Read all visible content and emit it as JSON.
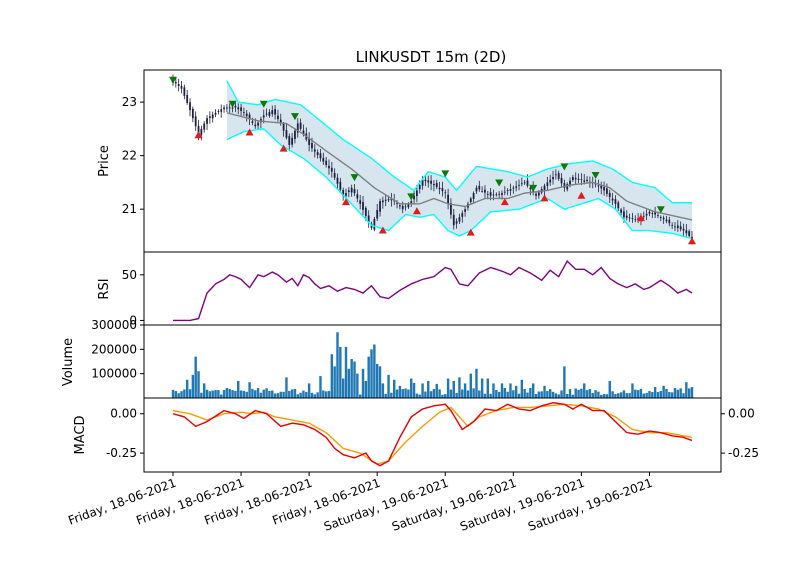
{
  "chart_data": {
    "title": "LINKUSDT 15m (2D)",
    "type": "candlestick",
    "colors": {
      "candle": "#1f1f3f",
      "band_line": "#00ffff",
      "band_fill": "#c9dcea",
      "mid_line": "#808080",
      "sell_marker": "#0a7a0a",
      "buy_marker": "#e21b1b",
      "rsi": "#800080",
      "volume": "#1f77b4",
      "macd": "#e60000",
      "signal": "#ff9900"
    },
    "x_tick_labels": [
      "Friday, 18-06-2021",
      "Friday, 18-06-2021",
      "Friday, 18-06-2021",
      "Friday, 18-06-2021",
      "Saturday, 19-06-2021",
      "Saturday, 19-06-2021",
      "Saturday, 19-06-2021",
      "Saturday, 19-06-2021"
    ],
    "x_tick_index": [
      0,
      24,
      48,
      72,
      96,
      120,
      144,
      168
    ],
    "candles": 184,
    "price_panel": {
      "ylabel": "Price",
      "yticks": [
        21,
        22,
        23
      ],
      "ylim": [
        20.2,
        23.6
      ],
      "close_keypoints": [
        [
          0,
          23.4
        ],
        [
          3,
          23.25
        ],
        [
          6,
          22.85
        ],
        [
          9,
          22.4
        ],
        [
          12,
          22.7
        ],
        [
          18,
          22.9
        ],
        [
          22,
          22.9
        ],
        [
          25,
          22.8
        ],
        [
          29,
          22.55
        ],
        [
          32,
          22.75
        ],
        [
          35,
          22.85
        ],
        [
          38,
          22.6
        ],
        [
          41,
          22.2
        ],
        [
          44,
          22.6
        ],
        [
          48,
          22.2
        ],
        [
          52,
          21.95
        ],
        [
          56,
          21.7
        ],
        [
          60,
          21.25
        ],
        [
          63,
          21.4
        ],
        [
          66,
          21.1
        ],
        [
          70,
          20.65
        ],
        [
          73,
          21.15
        ],
        [
          77,
          21.2
        ],
        [
          81,
          21.0
        ],
        [
          84,
          21.15
        ],
        [
          88,
          21.55
        ],
        [
          92,
          21.45
        ],
        [
          96,
          21.3
        ],
        [
          99,
          20.7
        ],
        [
          103,
          21.0
        ],
        [
          107,
          21.4
        ],
        [
          112,
          21.25
        ],
        [
          116,
          21.3
        ],
        [
          120,
          21.4
        ],
        [
          124,
          21.5
        ],
        [
          128,
          21.25
        ],
        [
          132,
          21.5
        ],
        [
          135,
          21.65
        ],
        [
          138,
          21.4
        ],
        [
          141,
          21.6
        ],
        [
          144,
          21.55
        ],
        [
          148,
          21.5
        ],
        [
          152,
          21.35
        ],
        [
          156,
          21.1
        ],
        [
          159,
          20.85
        ],
        [
          164,
          20.8
        ],
        [
          168,
          20.95
        ],
        [
          172,
          20.85
        ],
        [
          176,
          20.7
        ],
        [
          180,
          20.6
        ],
        [
          183,
          20.45
        ]
      ],
      "mid_keypoints": [
        [
          19,
          22.8
        ],
        [
          30,
          22.65
        ],
        [
          40,
          22.6
        ],
        [
          46,
          22.4
        ],
        [
          55,
          22.05
        ],
        [
          63,
          21.75
        ],
        [
          71,
          21.4
        ],
        [
          80,
          21.1
        ],
        [
          87,
          21.1
        ],
        [
          92,
          21.2
        ],
        [
          97,
          21.1
        ],
        [
          103,
          21.05
        ],
        [
          110,
          21.2
        ],
        [
          118,
          21.2
        ],
        [
          124,
          21.3
        ],
        [
          132,
          21.35
        ],
        [
          140,
          21.45
        ],
        [
          148,
          21.5
        ],
        [
          154,
          21.4
        ],
        [
          160,
          21.15
        ],
        [
          170,
          20.95
        ],
        [
          183,
          20.8
        ]
      ],
      "upper_keypoints": [
        [
          19,
          23.4
        ],
        [
          23,
          23.0
        ],
        [
          30,
          22.95
        ],
        [
          36,
          23.05
        ],
        [
          45,
          22.95
        ],
        [
          52,
          22.65
        ],
        [
          60,
          22.3
        ],
        [
          70,
          21.95
        ],
        [
          78,
          21.6
        ],
        [
          85,
          21.35
        ],
        [
          90,
          21.7
        ],
        [
          96,
          21.6
        ],
        [
          100,
          21.35
        ],
        [
          107,
          21.8
        ],
        [
          118,
          21.7
        ],
        [
          125,
          21.6
        ],
        [
          132,
          21.75
        ],
        [
          140,
          21.85
        ],
        [
          148,
          21.9
        ],
        [
          155,
          21.75
        ],
        [
          162,
          21.5
        ],
        [
          170,
          21.4
        ],
        [
          176,
          21.12
        ],
        [
          183,
          21.12
        ]
      ],
      "lower_keypoints": [
        [
          19,
          22.3
        ],
        [
          25,
          22.45
        ],
        [
          32,
          22.5
        ],
        [
          38,
          22.2
        ],
        [
          46,
          21.95
        ],
        [
          54,
          21.6
        ],
        [
          62,
          21.15
        ],
        [
          70,
          20.7
        ],
        [
          76,
          20.6
        ],
        [
          82,
          20.9
        ],
        [
          87,
          20.85
        ],
        [
          92,
          20.9
        ],
        [
          97,
          20.6
        ],
        [
          101,
          20.5
        ],
        [
          105,
          20.6
        ],
        [
          112,
          20.95
        ],
        [
          122,
          21.0
        ],
        [
          132,
          21.2
        ],
        [
          138,
          21.0
        ],
        [
          144,
          21.1
        ],
        [
          150,
          21.2
        ],
        [
          156,
          21.0
        ],
        [
          162,
          20.6
        ],
        [
          168,
          20.6
        ],
        [
          176,
          20.55
        ],
        [
          183,
          20.45
        ]
      ],
      "sell_signals": [
        [
          0,
          23.4
        ],
        [
          21,
          22.95
        ],
        [
          32,
          22.95
        ],
        [
          43,
          22.72
        ],
        [
          64,
          21.58
        ],
        [
          84,
          21.22
        ],
        [
          96,
          21.65
        ],
        [
          115,
          21.48
        ],
        [
          127,
          21.38
        ],
        [
          138,
          21.78
        ],
        [
          149,
          21.62
        ],
        [
          172,
          20.98
        ]
      ],
      "buy_signals": [
        [
          9,
          22.4
        ],
        [
          27,
          22.45
        ],
        [
          39,
          22.15
        ],
        [
          61,
          21.15
        ],
        [
          74,
          20.62
        ],
        [
          86,
          20.98
        ],
        [
          105,
          20.58
        ],
        [
          117,
          21.15
        ],
        [
          131,
          21.22
        ],
        [
          144,
          21.27
        ],
        [
          165,
          20.85
        ],
        [
          183,
          20.42
        ]
      ]
    },
    "rsi_panel": {
      "ylabel": "RSI",
      "yticks": [
        0,
        50
      ],
      "ylim": [
        -5,
        75
      ],
      "start_index": 0,
      "keypoints": [
        [
          0,
          0
        ],
        [
          6,
          0
        ],
        [
          9,
          2
        ],
        [
          12,
          30
        ],
        [
          15,
          40
        ],
        [
          18,
          45
        ],
        [
          20,
          50
        ],
        [
          22,
          48
        ],
        [
          24,
          45
        ],
        [
          27,
          36
        ],
        [
          30,
          50
        ],
        [
          32,
          48
        ],
        [
          35,
          53
        ],
        [
          37,
          50
        ],
        [
          40,
          42
        ],
        [
          42,
          46
        ],
        [
          44,
          38
        ],
        [
          46,
          50
        ],
        [
          48,
          47
        ],
        [
          50,
          40
        ],
        [
          52,
          35
        ],
        [
          55,
          38
        ],
        [
          58,
          32
        ],
        [
          61,
          36
        ],
        [
          64,
          34
        ],
        [
          67,
          30
        ],
        [
          70,
          38
        ],
        [
          73,
          26
        ],
        [
          76,
          24
        ],
        [
          80,
          33
        ],
        [
          84,
          40
        ],
        [
          88,
          45
        ],
        [
          92,
          48
        ],
        [
          96,
          58
        ],
        [
          98,
          56
        ],
        [
          101,
          40
        ],
        [
          104,
          38
        ],
        [
          108,
          52
        ],
        [
          112,
          58
        ],
        [
          116,
          54
        ],
        [
          119,
          50
        ],
        [
          122,
          58
        ],
        [
          126,
          52
        ],
        [
          130,
          44
        ],
        [
          133,
          55
        ],
        [
          136,
          48
        ],
        [
          139,
          65
        ],
        [
          142,
          56
        ],
        [
          145,
          56
        ],
        [
          148,
          50
        ],
        [
          151,
          58
        ],
        [
          154,
          46
        ],
        [
          157,
          40
        ],
        [
          160,
          36
        ],
        [
          163,
          40
        ],
        [
          166,
          34
        ],
        [
          168,
          36
        ],
        [
          172,
          44
        ],
        [
          175,
          38
        ],
        [
          178,
          30
        ],
        [
          181,
          34
        ],
        [
          183,
          30
        ]
      ]
    },
    "volume_panel": {
      "ylabel": "Volume",
      "yticks": [
        100000,
        200000,
        300000
      ],
      "ylim": [
        0,
        300000
      ],
      "base_volume": 32000,
      "spikes": [
        [
          5,
          75000
        ],
        [
          7,
          95000
        ],
        [
          8,
          170000
        ],
        [
          9,
          110000
        ],
        [
          11,
          60000
        ],
        [
          23,
          70000
        ],
        [
          27,
          65000
        ],
        [
          40,
          85000
        ],
        [
          48,
          60000
        ],
        [
          52,
          90000
        ],
        [
          57,
          130000
        ],
        [
          60,
          80000
        ],
        [
          61,
          210000
        ],
        [
          62,
          120000
        ],
        [
          63,
          100000
        ],
        [
          64,
          90000
        ],
        [
          67,
          120000
        ],
        [
          68,
          70000
        ],
        [
          69,
          85000
        ],
        [
          70,
          70000
        ],
        [
          71,
          45000
        ],
        [
          74,
          60000
        ],
        [
          76,
          95000
        ],
        [
          78,
          75000
        ],
        [
          80,
          50000
        ],
        [
          84,
          80000
        ],
        [
          85,
          62000
        ],
        [
          88,
          60000
        ],
        [
          90,
          70000
        ],
        [
          93,
          58000
        ],
        [
          97,
          80000
        ],
        [
          99,
          70000
        ],
        [
          101,
          85000
        ],
        [
          103,
          60000
        ],
        [
          105,
          100000
        ],
        [
          107,
          120000
        ],
        [
          109,
          80000
        ],
        [
          111,
          80000
        ],
        [
          113,
          60000
        ],
        [
          116,
          60000
        ],
        [
          119,
          60000
        ],
        [
          121,
          50000
        ],
        [
          123,
          75000
        ],
        [
          127,
          60000
        ],
        [
          131,
          50000
        ],
        [
          138,
          130000
        ],
        [
          145,
          60000
        ],
        [
          154,
          70000
        ],
        [
          162,
          60000
        ],
        [
          170,
          45000
        ],
        [
          173,
          50000
        ],
        [
          181,
          65000
        ],
        [
          183,
          45000
        ]
      ],
      "tall_spikes": [
        [
          56,
          180000
        ],
        [
          63,
          160000
        ],
        [
          70,
          200000
        ],
        [
          71,
          220000
        ],
        [
          69,
          170000
        ],
        [
          64,
          150000
        ],
        [
          58,
          270000
        ],
        [
          59,
          210000
        ],
        [
          65,
          100000
        ],
        [
          72,
          140000
        ],
        [
          73,
          130000
        ]
      ]
    },
    "macd_panel": {
      "ylabel": "MACD",
      "yticks_left": [
        0.0,
        -0.25
      ],
      "yticks_right": [
        0.0,
        -0.25
      ],
      "ylim": [
        -0.37,
        0.1
      ],
      "macd_keypoints": [
        [
          0,
          0.0
        ],
        [
          4,
          -0.02
        ],
        [
          8,
          -0.08
        ],
        [
          12,
          -0.05
        ],
        [
          18,
          0.02
        ],
        [
          22,
          0.0
        ],
        [
          25,
          -0.03
        ],
        [
          29,
          0.02
        ],
        [
          33,
          0.0
        ],
        [
          38,
          -0.08
        ],
        [
          42,
          -0.06
        ],
        [
          46,
          -0.07
        ],
        [
          50,
          -0.1
        ],
        [
          54,
          -0.15
        ],
        [
          57,
          -0.22
        ],
        [
          60,
          -0.26
        ],
        [
          64,
          -0.28
        ],
        [
          68,
          -0.25
        ],
        [
          70,
          -0.3
        ],
        [
          73,
          -0.33
        ],
        [
          76,
          -0.3
        ],
        [
          80,
          -0.15
        ],
        [
          84,
          -0.02
        ],
        [
          88,
          0.03
        ],
        [
          92,
          0.05
        ],
        [
          96,
          0.06
        ],
        [
          98,
          0.02
        ],
        [
          102,
          -0.1
        ],
        [
          106,
          -0.05
        ],
        [
          110,
          0.03
        ],
        [
          114,
          0.02
        ],
        [
          118,
          0.06
        ],
        [
          122,
          0.03
        ],
        [
          126,
          0.02
        ],
        [
          130,
          0.05
        ],
        [
          134,
          0.07
        ],
        [
          138,
          0.06
        ],
        [
          141,
          0.03
        ],
        [
          144,
          0.06
        ],
        [
          148,
          0.02
        ],
        [
          152,
          0.02
        ],
        [
          156,
          -0.05
        ],
        [
          160,
          -0.12
        ],
        [
          164,
          -0.13
        ],
        [
          168,
          -0.11
        ],
        [
          172,
          -0.12
        ],
        [
          176,
          -0.14
        ],
        [
          180,
          -0.15
        ],
        [
          183,
          -0.17
        ]
      ],
      "signal_keypoints": [
        [
          0,
          0.02
        ],
        [
          6,
          0.0
        ],
        [
          12,
          -0.04
        ],
        [
          18,
          0.0
        ],
        [
          24,
          0.01
        ],
        [
          28,
          0.0
        ],
        [
          32,
          0.01
        ],
        [
          36,
          -0.02
        ],
        [
          42,
          -0.04
        ],
        [
          48,
          -0.06
        ],
        [
          54,
          -0.12
        ],
        [
          60,
          -0.22
        ],
        [
          66,
          -0.25
        ],
        [
          72,
          -0.32
        ],
        [
          76,
          -0.3
        ],
        [
          82,
          -0.18
        ],
        [
          88,
          -0.08
        ],
        [
          94,
          0.01
        ],
        [
          98,
          0.04
        ],
        [
          104,
          -0.08
        ],
        [
          108,
          -0.02
        ],
        [
          114,
          0.02
        ],
        [
          120,
          0.04
        ],
        [
          126,
          0.04
        ],
        [
          132,
          0.05
        ],
        [
          138,
          0.06
        ],
        [
          144,
          0.05
        ],
        [
          150,
          0.03
        ],
        [
          156,
          -0.02
        ],
        [
          162,
          -0.1
        ],
        [
          168,
          -0.12
        ],
        [
          174,
          -0.12
        ],
        [
          180,
          -0.14
        ],
        [
          183,
          -0.15
        ]
      ]
    }
  }
}
